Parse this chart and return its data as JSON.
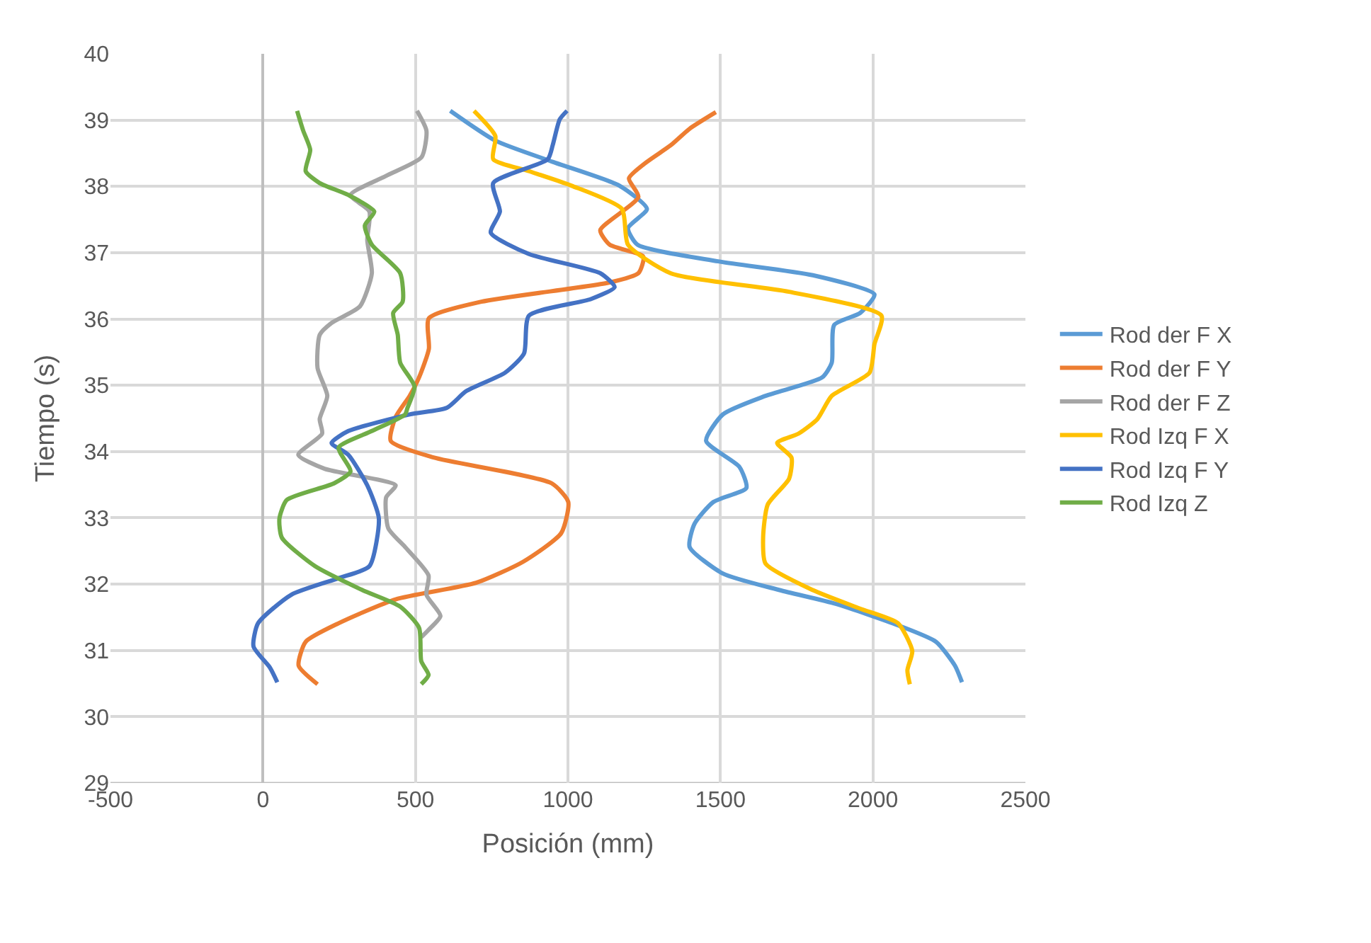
{
  "chart_data": {
    "type": "line",
    "xlabel": "Posición (mm)",
    "ylabel": "Tiempo (s)",
    "xlim": [
      -500,
      2500
    ],
    "xticks": [
      -500,
      0,
      500,
      1000,
      1500,
      2000,
      2500
    ],
    "ylim": [
      29,
      40
    ],
    "yticks": [
      29,
      30,
      31,
      32,
      33,
      34,
      35,
      36,
      37,
      38,
      39,
      40
    ],
    "grid": true,
    "legend": "right",
    "line_style": "solid",
    "series": [
      {
        "name": "Rod der F X",
        "color": "#5b9bd5",
        "x": [
          614,
          762,
          950,
          1169,
          1259,
          1197,
          1228,
          1492,
          1803,
          2005,
          1958,
          1873,
          1865,
          1834,
          1648,
          1508,
          1453,
          1562,
          1585,
          1477,
          1415,
          1399,
          1508,
          1694,
          1880,
          2082,
          2207,
          2269,
          2292
        ],
        "values": [
          39.14,
          38.69,
          38.37,
          38.01,
          37.66,
          37.37,
          37.12,
          36.87,
          36.66,
          36.37,
          36.09,
          35.91,
          35.34,
          35.12,
          34.84,
          34.56,
          34.16,
          33.77,
          33.45,
          33.24,
          32.91,
          32.56,
          32.16,
          31.91,
          31.7,
          31.38,
          31.13,
          30.77,
          30.52
        ]
      },
      {
        "name": "Rod der F Y",
        "color": "#ed7d31",
        "x": [
          1485,
          1399,
          1337,
          1259,
          1200,
          1231,
          1106,
          1137,
          1247,
          1231,
          1137,
          716,
          544,
          544,
          512,
          481,
          435,
          419,
          559,
          947,
          1001,
          978,
          854,
          699,
          435,
          248,
          140,
          117,
          179
        ],
        "values": [
          39.12,
          38.87,
          38.62,
          38.37,
          38.12,
          37.84,
          37.34,
          37.12,
          36.94,
          36.69,
          36.55,
          36.26,
          36.01,
          35.55,
          35.12,
          34.84,
          34.52,
          34.16,
          33.91,
          33.52,
          33.24,
          32.77,
          32.34,
          32.02,
          31.77,
          31.41,
          31.13,
          30.77,
          30.49
        ]
      },
      {
        "name": "Rod der F Z",
        "color": "#a5a5a5",
        "x": [
          505,
          536,
          520,
          404,
          287,
          349,
          342,
          357,
          318,
          225,
          186,
          179,
          211,
          186,
          194,
          116,
          202,
          435,
          404,
          411,
          466,
          543,
          536,
          582,
          543,
          519
        ],
        "values": [
          39.14,
          38.84,
          38.44,
          38.16,
          37.87,
          37.62,
          37.19,
          36.69,
          36.19,
          35.94,
          35.76,
          35.26,
          34.84,
          34.49,
          34.27,
          33.95,
          33.74,
          33.49,
          33.31,
          32.84,
          32.56,
          32.13,
          31.84,
          31.52,
          31.31,
          31.2
        ]
      },
      {
        "name": "Rod Izq F X",
        "color": "#ffc000",
        "x": [
          692,
          762,
          755,
          872,
          1012,
          1177,
          1197,
          1337,
          1725,
          2028,
          2005,
          1989,
          1865,
          1818,
          1756,
          1686,
          1733,
          1725,
          1655,
          1640,
          1648,
          1803,
          1958,
          2082,
          2129,
          2113,
          2121
        ],
        "values": [
          39.14,
          38.76,
          38.41,
          38.23,
          38.01,
          37.66,
          37.12,
          36.69,
          36.41,
          36.05,
          35.62,
          35.19,
          34.84,
          34.49,
          34.27,
          34.13,
          33.91,
          33.59,
          33.2,
          32.7,
          32.31,
          31.91,
          31.63,
          31.41,
          30.99,
          30.7,
          30.49
        ]
      },
      {
        "name": "Rod Izq F Y",
        "color": "#4472c4",
        "x": [
          997,
          973,
          950,
          934,
          755,
          777,
          747,
          872,
          1106,
          1153,
          1075,
          872,
          856,
          794,
          666,
          603,
          481,
          280,
          225,
          280,
          342,
          380,
          349,
          248,
          93,
          -16,
          -31,
          23,
          47
        ],
        "values": [
          39.14,
          39.01,
          38.62,
          38.41,
          38.05,
          37.62,
          37.3,
          36.98,
          36.69,
          36.48,
          36.3,
          36.05,
          35.48,
          35.19,
          34.91,
          34.66,
          34.56,
          34.31,
          34.13,
          33.95,
          33.49,
          32.99,
          32.27,
          32.09,
          31.84,
          31.41,
          31.06,
          30.74,
          30.52
        ]
      },
      {
        "name": "Rod Izq Z",
        "color": "#70ad47",
        "x": [
          112,
          132,
          155,
          140,
          186,
          280,
          365,
          334,
          357,
          450,
          458,
          427,
          442,
          450,
          497,
          474,
          466,
          357,
          248,
          287,
          233,
          78,
          54,
          62,
          171,
          326,
          450,
          512,
          519,
          543,
          519
        ],
        "values": [
          39.14,
          38.84,
          38.55,
          38.23,
          38.05,
          37.87,
          37.62,
          37.41,
          37.12,
          36.69,
          36.26,
          36.09,
          35.76,
          35.34,
          34.98,
          34.66,
          34.56,
          34.31,
          34.06,
          33.7,
          33.52,
          33.27,
          32.99,
          32.7,
          32.27,
          31.91,
          31.66,
          31.34,
          30.84,
          30.63,
          30.49
        ]
      }
    ]
  }
}
